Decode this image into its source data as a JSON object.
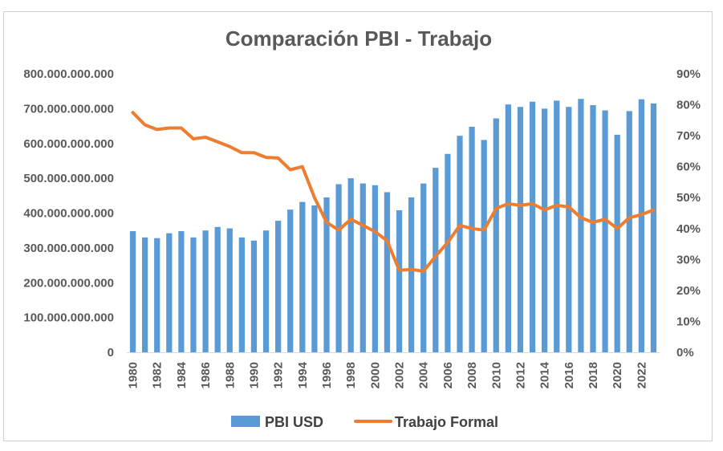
{
  "chart_data": {
    "type": "bar",
    "title": "Comparación PBI - Trabajo",
    "xlabel": "",
    "ylabel": "",
    "y2label": "",
    "x": [
      1980,
      1981,
      1982,
      1983,
      1984,
      1985,
      1986,
      1987,
      1988,
      1989,
      1990,
      1991,
      1992,
      1993,
      1994,
      1995,
      1996,
      1997,
      1998,
      1999,
      2000,
      2001,
      2002,
      2003,
      2004,
      2005,
      2006,
      2007,
      2008,
      2009,
      2010,
      2011,
      2012,
      2013,
      2014,
      2015,
      2016,
      2017,
      2018,
      2019,
      2020,
      2021,
      2022,
      2023
    ],
    "x_tick_labels": [
      "1980",
      "1982",
      "1984",
      "1986",
      "1988",
      "1990",
      "1992",
      "1994",
      "1996",
      "1998",
      "2000",
      "2002",
      "2004",
      "2006",
      "2008",
      "2010",
      "2012",
      "2014",
      "2016",
      "2018",
      "2020",
      "2022"
    ],
    "ylim": [
      0,
      800000000000
    ],
    "y_tick_labels": [
      "0",
      "100.000.000.000",
      "200.000.000.000",
      "300.000.000.000",
      "400.000.000.000",
      "500.000.000.000",
      "600.000.000.000",
      "700.000.000.000",
      "800.000.000.000"
    ],
    "y2lim": [
      0,
      90
    ],
    "y2_tick_labels": [
      "0%",
      "10%",
      "20%",
      "30%",
      "40%",
      "50%",
      "60%",
      "70%",
      "80%",
      "90%"
    ],
    "grid": false,
    "legend_position": "bottom",
    "series": [
      {
        "name": "PBI USD",
        "type": "bar",
        "axis": "left",
        "color": "#5b9bd5",
        "values": [
          348000000000,
          330000000000,
          328000000000,
          342000000000,
          348000000000,
          330000000000,
          350000000000,
          360000000000,
          356000000000,
          330000000000,
          321000000000,
          350000000000,
          378000000000,
          410000000000,
          432000000000,
          422000000000,
          445000000000,
          483000000000,
          500000000000,
          485000000000,
          480000000000,
          460000000000,
          408000000000,
          445000000000,
          485000000000,
          530000000000,
          570000000000,
          622000000000,
          648000000000,
          610000000000,
          672000000000,
          712000000000,
          705000000000,
          720000000000,
          700000000000,
          723000000000,
          705000000000,
          728000000000,
          710000000000,
          695000000000,
          625000000000,
          693000000000,
          727000000000,
          715000000000
        ]
      },
      {
        "name": "Trabajo Formal",
        "type": "line",
        "axis": "right",
        "color": "#ed7d31",
        "values": [
          77.5,
          73.5,
          72,
          72.5,
          72.5,
          69,
          69.5,
          68,
          66.5,
          64.5,
          64.5,
          63,
          62.8,
          59,
          60,
          50,
          42,
          39.5,
          43,
          41,
          39,
          36,
          26.5,
          26.8,
          26.2,
          31,
          35.5,
          41,
          40,
          39.5,
          46.5,
          48,
          47.5,
          48,
          46,
          47.5,
          47,
          43.5,
          42,
          43,
          40,
          43.5,
          44.5,
          46
        ]
      }
    ]
  }
}
